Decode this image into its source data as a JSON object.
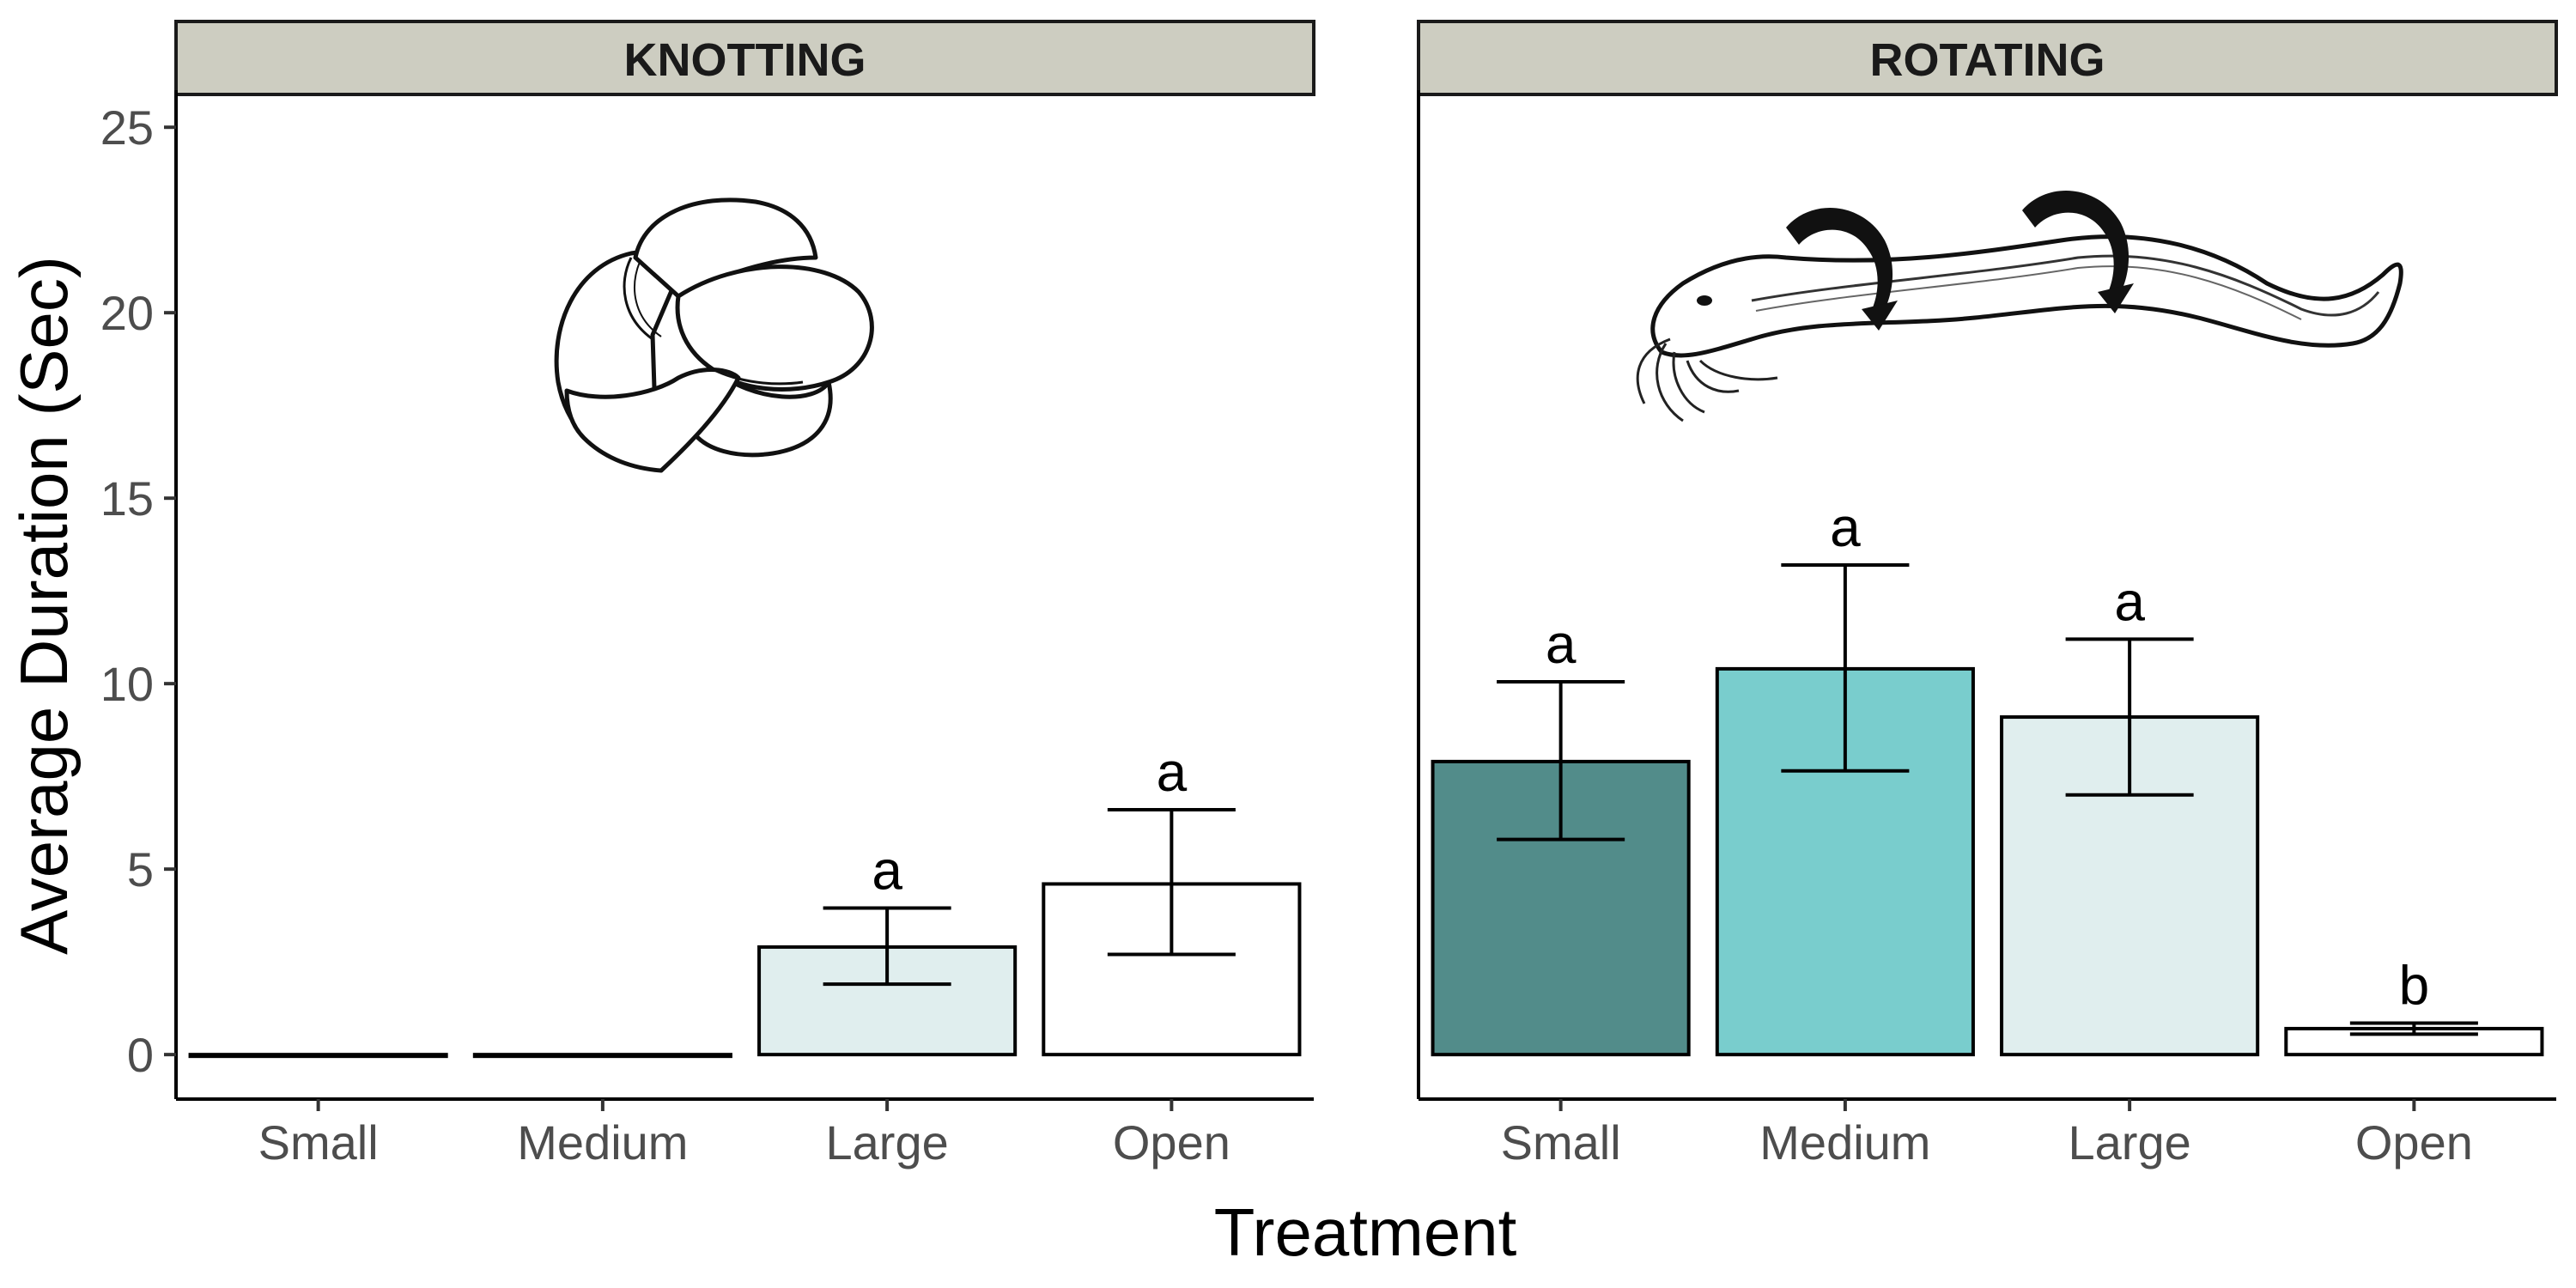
{
  "chart_data": {
    "type": "bar",
    "xlabel": "Treatment",
    "ylabel": "Average Duration (Sec)",
    "ylim": [
      -1.2,
      26
    ],
    "yticks": [
      0,
      5,
      10,
      15,
      20,
      25
    ],
    "categories": [
      "Small",
      "Medium",
      "Large",
      "Open"
    ],
    "colors": {
      "Small": "#528c8a",
      "Medium": "#79cdcd",
      "Large": "#e0eeee",
      "Open": "#ffffff",
      "strip_fill": "#cdcdc1",
      "outline": "#000000"
    },
    "grid": false,
    "facets": [
      {
        "name": "KNOTTING",
        "illustration": "knotting-eel-illustration",
        "values": [
          0,
          0,
          2.9,
          4.6
        ],
        "error_low": [
          0,
          0,
          1.9,
          2.7
        ],
        "error_high": [
          0,
          0,
          3.95,
          6.6
        ],
        "labels": [
          "",
          "",
          "a",
          "a"
        ]
      },
      {
        "name": "ROTATING",
        "illustration": "rotating-eel-illustration",
        "values": [
          7.9,
          10.4,
          9.1,
          0.7
        ],
        "error_low": [
          5.8,
          7.65,
          7.0,
          0.55
        ],
        "error_high": [
          10.05,
          13.2,
          11.2,
          0.85
        ],
        "labels": [
          "a",
          "a",
          "a",
          "b"
        ]
      }
    ]
  }
}
